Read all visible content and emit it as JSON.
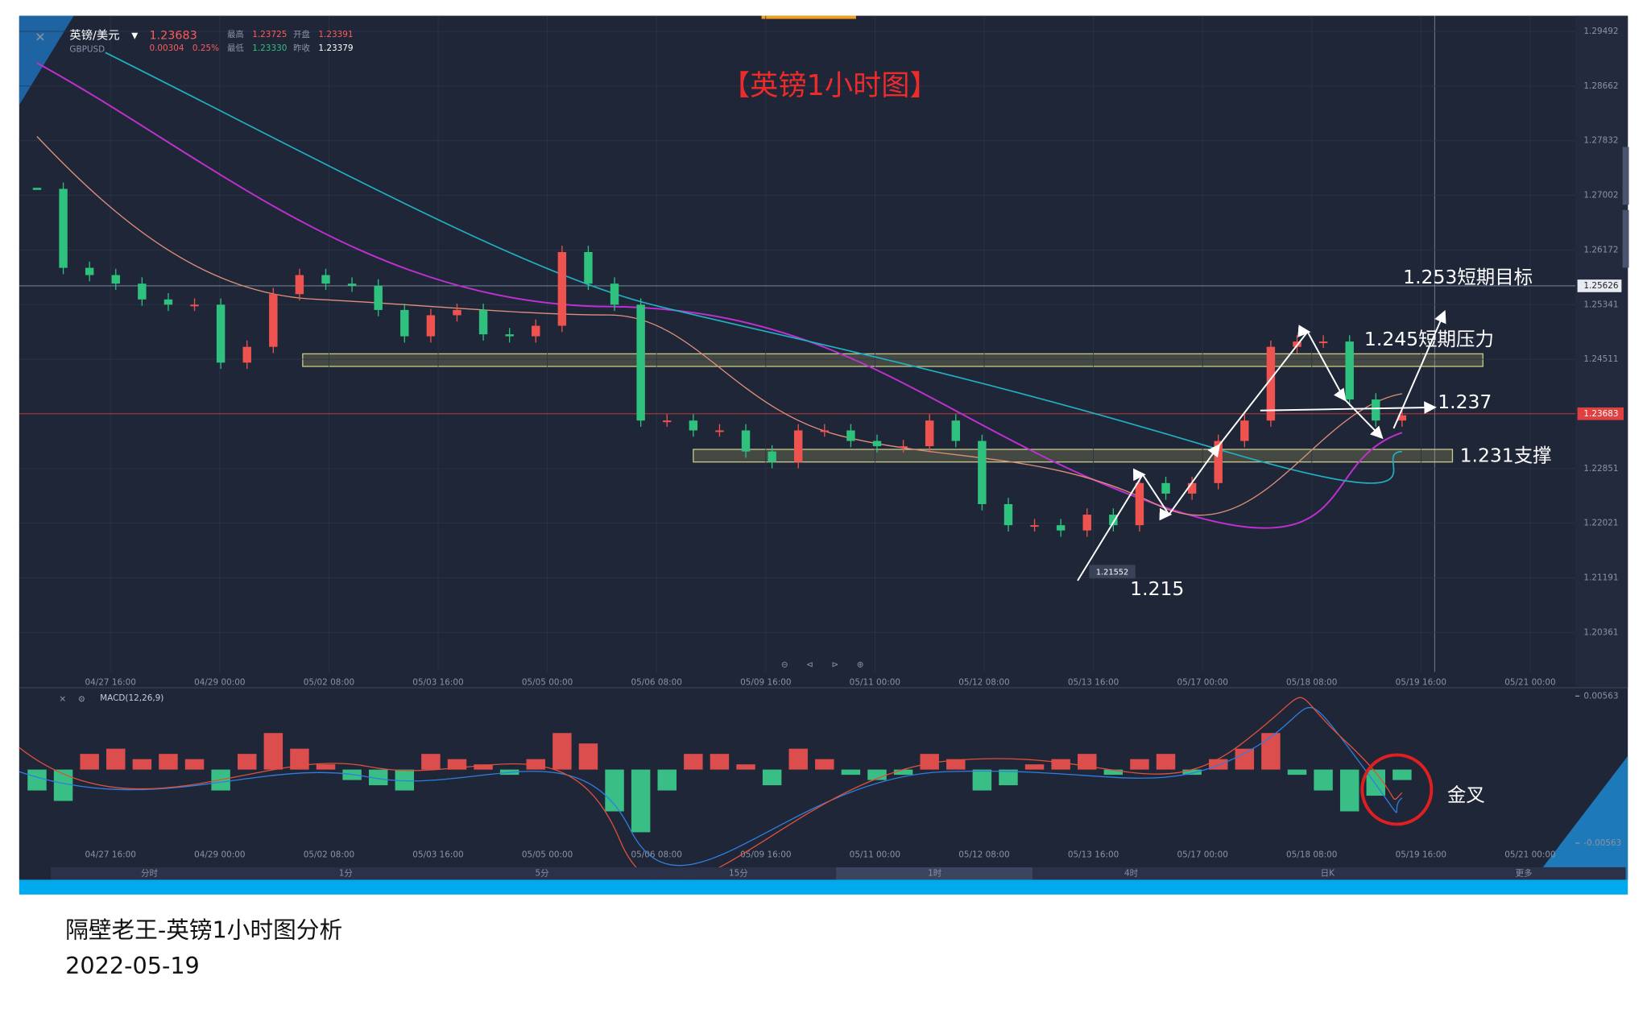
{
  "header": {
    "pair": "英镑/美元",
    "code": "GBPUSD",
    "change": "0.00304",
    "change_pct": "0.25%",
    "high_label": "最高",
    "high": "1.23725",
    "open_label": "开盘",
    "open": "1.23391",
    "low_label": "最低",
    "low": "1.23330",
    "prev_close_label": "昨收",
    "prev_close": "1.23379"
  },
  "chart_title": "【英镑1小时图】",
  "price_chart": {
    "last_price": 1.23683,
    "marker_price": 1.25626,
    "ylim": [
      1.1976,
      1.2973
    ],
    "yticks": [
      1.29492,
      1.28662,
      1.27832,
      1.27002,
      1.26172,
      1.25341,
      1.24511,
      1.22851,
      1.22021,
      1.21191,
      1.20361
    ],
    "closes": [
      1.271,
      1.259,
      1.2579,
      1.2566,
      1.2542,
      1.2534,
      1.2534,
      1.2446,
      1.247,
      1.255,
      1.2579,
      1.2566,
      1.2563,
      1.2526,
      1.2486,
      1.2518,
      1.2526,
      1.2489,
      1.2486,
      1.2502,
      1.2614,
      1.2566,
      1.2534,
      1.2358,
      1.2358,
      1.2343,
      1.2343,
      1.2311,
      1.2295,
      1.2343,
      1.2343,
      1.2327,
      1.2319,
      1.2319,
      1.2358,
      1.2327,
      1.2231,
      1.2199,
      1.2199,
      1.2191,
      1.2215,
      1.2199,
      1.2263,
      1.2247,
      1.2263,
      1.2327,
      1.2358,
      1.247,
      1.2478,
      1.2478,
      1.239,
      1.2358,
      1.2366
    ],
    "x_labels": [
      "04/27 16:00",
      "04/29 00:00",
      "05/02 08:00",
      "05/03 16:00",
      "05/05 00:00",
      "05/06 08:00",
      "05/09 16:00",
      "05/11 00:00",
      "05/12 08:00",
      "05/13 16:00",
      "05/17 00:00",
      "05/18 08:00",
      "05/19 16:00",
      "05/21 00:00"
    ],
    "low_marker": "1.21552"
  },
  "annotations": {
    "target": "1.253短期目标",
    "resistance": "1.245短期压力",
    "mid": "1.237",
    "support": "1.231支撑",
    "low": "1.215",
    "golden_cross": "金叉"
  },
  "macd": {
    "label": "MACD(12,26,9)",
    "ylim": [
      -0.00716,
      0.00627
    ],
    "yticks": [
      0.00563,
      -0.00563
    ],
    "histogram": [
      -0.0016,
      -0.0024,
      0.0012,
      0.0016,
      0.0008,
      0.0012,
      0.0008,
      -0.0016,
      0.0012,
      0.0028,
      0.0016,
      0.0004,
      -0.0008,
      -0.0012,
      -0.0016,
      0.0012,
      0.0008,
      0.0004,
      -0.0004,
      0.0008,
      0.0028,
      0.002,
      -0.0032,
      -0.0048,
      -0.0016,
      0.0012,
      0.0012,
      0.0004,
      -0.0012,
      0.0016,
      0.0008,
      -0.0004,
      -0.0008,
      -0.0004,
      0.0012,
      0.0008,
      -0.0016,
      -0.0012,
      0.0004,
      0.0008,
      0.0012,
      -0.0004,
      0.0008,
      0.0012,
      -0.0004,
      0.0008,
      0.0016,
      0.0028,
      -0.0004,
      -0.0016,
      -0.0032,
      -0.002,
      -0.0008
    ]
  },
  "tabs": [
    "分时",
    "1分",
    "5分",
    "15分",
    "1时",
    "4时",
    "日K",
    "更多"
  ],
  "caption": {
    "title": "隔壁老王-英镑1小时图分析",
    "date": "2022-05-19"
  }
}
